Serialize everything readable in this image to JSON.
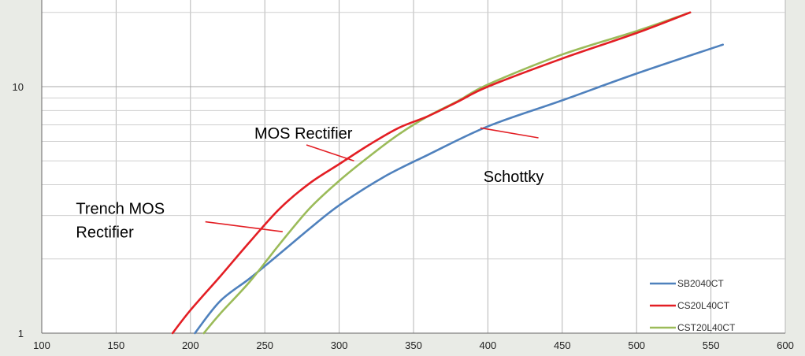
{
  "chart_data": {
    "type": "line",
    "title": "",
    "xlabel": "",
    "ylabel": "",
    "x_scale": "linear",
    "y_scale": "log",
    "xlim": [
      100,
      600
    ],
    "ylim": [
      1,
      20
    ],
    "grid": true,
    "legend_position": "bottom-right",
    "x_ticks": [
      "100",
      "150",
      "200",
      "250",
      "300",
      "350",
      "400",
      "450",
      "500",
      "550",
      "600"
    ],
    "y_ticks": [
      {
        "value": 1,
        "label": "1"
      },
      {
        "value": 10,
        "label": "10"
      }
    ],
    "series": [
      {
        "name": "SB2040CT",
        "color": "#4f81bd",
        "x": [
          203,
          220,
          240,
          260,
          280,
          300,
          330,
          360,
          400,
          450,
          500,
          558
        ],
        "y": [
          1.0,
          1.35,
          1.67,
          2.1,
          2.65,
          3.3,
          4.3,
          5.3,
          6.9,
          8.8,
          11.3,
          14.8
        ]
      },
      {
        "name": "CS20L40CT",
        "color": "#e31e24",
        "x": [
          188,
          200,
          220,
          240,
          260,
          280,
          300,
          320,
          340,
          360,
          380,
          400,
          450,
          500,
          536
        ],
        "y": [
          1.0,
          1.24,
          1.7,
          2.35,
          3.2,
          4.05,
          4.85,
          5.8,
          6.8,
          7.6,
          8.7,
          10.0,
          13.0,
          16.5,
          20.0
        ]
      },
      {
        "name": "CST20L40CT",
        "color": "#9bbb59",
        "x": [
          209,
          220,
          240,
          260,
          280,
          300,
          320,
          340,
          360,
          380,
          400,
          450,
          500,
          536
        ],
        "y": [
          1.0,
          1.2,
          1.62,
          2.3,
          3.2,
          4.15,
          5.2,
          6.4,
          7.6,
          8.75,
          10.2,
          13.5,
          16.8,
          20.0
        ]
      }
    ],
    "annotations": [
      {
        "lines": [
          "MOS Rectifier"
        ],
        "points_to": "CS20L40CT",
        "text_x": 243,
        "text_y": 6.15,
        "arrow_from": [
          278,
          5.8
        ],
        "arrow_to": [
          310,
          5.0
        ]
      },
      {
        "lines": [
          "Trench MOS",
          "Rectifier"
        ],
        "points_to": "CS20L40CT",
        "text_x": 123,
        "text_y": 3.05,
        "arrow_from": [
          210,
          2.83
        ],
        "arrow_to": [
          262,
          2.58
        ]
      },
      {
        "lines": [
          "Schottky"
        ],
        "points_to": "SB2040CT",
        "text_x": 397,
        "text_y": 4.1,
        "arrow_from": [
          434,
          6.2
        ],
        "arrow_to": [
          395,
          6.8
        ]
      }
    ]
  }
}
